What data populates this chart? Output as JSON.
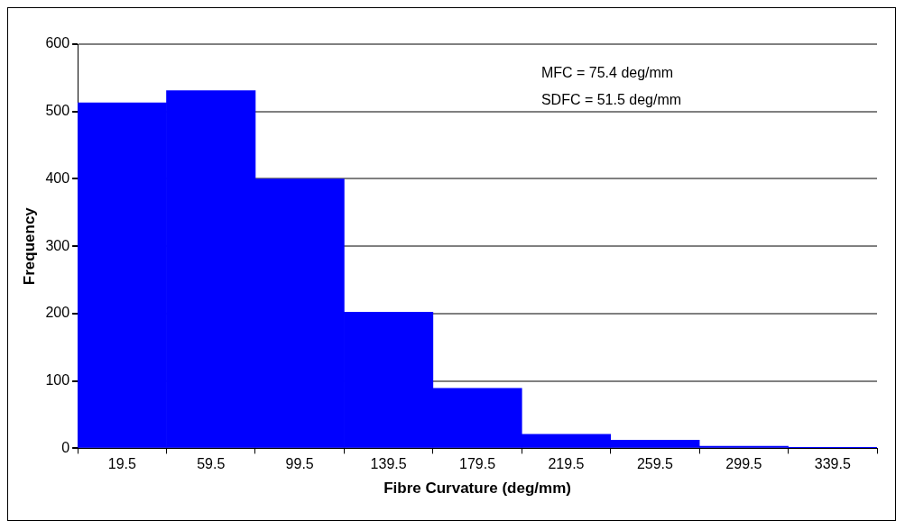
{
  "chart_data": {
    "type": "bar",
    "xlabel": "Fibre Curvature (deg/mm)",
    "ylabel": "Frequency",
    "categories": [
      "19.5",
      "59.5",
      "99.5",
      "139.5",
      "179.5",
      "219.5",
      "259.5",
      "299.5",
      "339.5"
    ],
    "values": [
      513,
      531,
      400,
      202,
      89,
      21,
      12,
      3,
      1
    ],
    "color": "#0000ff",
    "ylim": [
      0,
      600
    ],
    "yticks": [
      0,
      100,
      200,
      300,
      400,
      500,
      600
    ],
    "grid": "y",
    "legend": false,
    "annotations": [
      "MFC = 75.4 deg/mm",
      "SDFC = 51.5 deg/mm"
    ]
  }
}
